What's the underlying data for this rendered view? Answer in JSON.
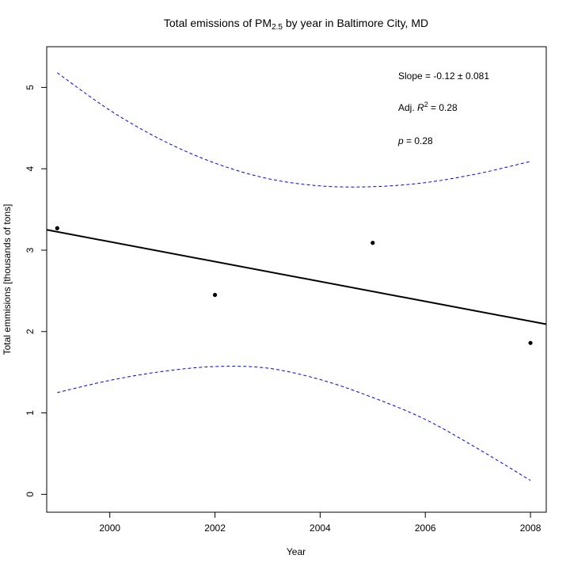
{
  "chart_data": {
    "type": "scatter",
    "title": "Total emissions of PM",
    "title_subscript": "2.5",
    "title_suffix": " by year in Baltimore City, MD",
    "xlabel": "Year",
    "ylabel": "Total emmisions [thousands of tons]",
    "xlim": [
      1998.8,
      2008.3
    ],
    "ylim": [
      -0.22,
      5.5
    ],
    "x_ticks": [
      2000,
      2002,
      2004,
      2006,
      2008
    ],
    "x_tick_labels": [
      "2000",
      "2002",
      "2004",
      "2006",
      "2008"
    ],
    "y_ticks": [
      0,
      1,
      2,
      3,
      4,
      5
    ],
    "y_tick_labels": [
      "0",
      "1",
      "2",
      "3",
      "4",
      "5"
    ],
    "points": [
      {
        "x": 1999,
        "y": 3.27
      },
      {
        "x": 2002,
        "y": 2.45
      },
      {
        "x": 2005,
        "y": 3.09
      },
      {
        "x": 2008,
        "y": 1.86
      }
    ],
    "fit_line": {
      "x1": 1998.8,
      "y1": 3.25,
      "x2": 2008.3,
      "y2": 2.09,
      "color": "#000000"
    },
    "confidence_band": {
      "color": "#0000ff",
      "style": "dashed",
      "upper": [
        {
          "x": 1999,
          "y": 5.18
        },
        {
          "x": 2000,
          "y": 4.72
        },
        {
          "x": 2001,
          "y": 4.35
        },
        {
          "x": 2002,
          "y": 4.07
        },
        {
          "x": 2003,
          "y": 3.88
        },
        {
          "x": 2004,
          "y": 3.79
        },
        {
          "x": 2005,
          "y": 3.78
        },
        {
          "x": 2006,
          "y": 3.83
        },
        {
          "x": 2007,
          "y": 3.94
        },
        {
          "x": 2008,
          "y": 4.09
        }
      ],
      "lower": [
        {
          "x": 1999,
          "y": 1.25
        },
        {
          "x": 2000,
          "y": 1.4
        },
        {
          "x": 2001,
          "y": 1.51
        },
        {
          "x": 2002,
          "y": 1.57
        },
        {
          "x": 2003,
          "y": 1.55
        },
        {
          "x": 2004,
          "y": 1.41
        },
        {
          "x": 2005,
          "y": 1.19
        },
        {
          "x": 2006,
          "y": 0.92
        },
        {
          "x": 2007,
          "y": 0.56
        },
        {
          "x": 2008,
          "y": 0.17
        }
      ]
    },
    "annotations": {
      "slope_prefix": "Slope = ",
      "slope_value": "-0.12 ± 0.081",
      "r2_prefix": "Adj. ",
      "r2_var": "R",
      "r2_sup": "2",
      "r2_value": " = 0.28",
      "p_var": "p",
      "p_value": " = 0.28"
    },
    "grid": false,
    "legend": "none"
  }
}
